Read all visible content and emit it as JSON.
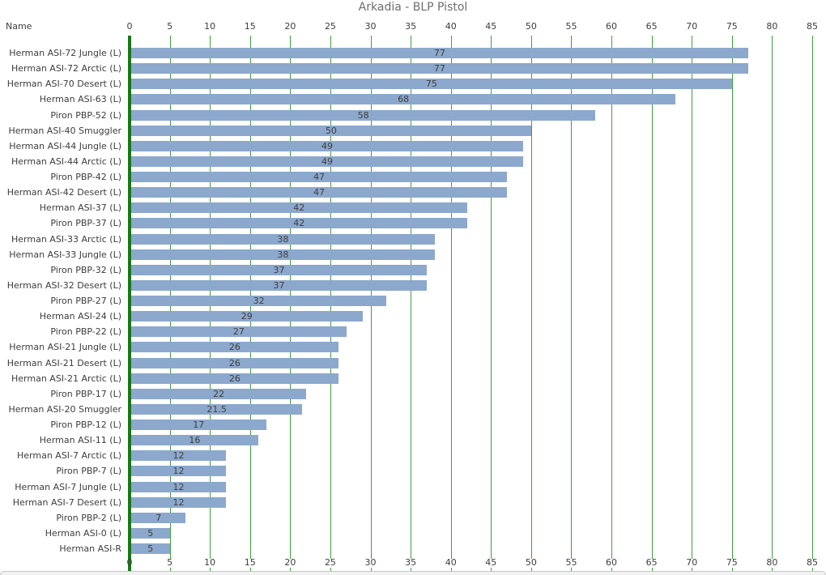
{
  "title": "Arkadia - BLP Pistol",
  "name_header": "Name",
  "chart_data": {
    "type": "bar",
    "orientation": "horizontal",
    "title": "Arkadia - BLP Pistol",
    "xlabel": "",
    "ylabel": "Name",
    "xlim": [
      0,
      85
    ],
    "ticks": [
      0,
      5,
      10,
      15,
      20,
      25,
      30,
      35,
      40,
      45,
      50,
      55,
      60,
      65,
      70,
      75,
      80,
      85
    ],
    "grid": true,
    "legend": "none",
    "axis_label_positions": [
      "top",
      "bottom"
    ],
    "categories": [
      "Herman ASI-72 Jungle (L)",
      "Herman ASI-72 Arctic (L)",
      "Herman ASI-70 Desert (L)",
      "Herman ASI-63 (L)",
      "Piron PBP-52 (L)",
      "Herman ASI-40 Smuggler",
      "Herman ASI-44 Jungle (L)",
      "Herman ASI-44 Arctic (L)",
      "Piron PBP-42 (L)",
      "Herman ASI-42 Desert (L)",
      "Herman ASI-37 (L)",
      "Piron PBP-37 (L)",
      "Herman ASI-33 Arctic (L)",
      "Herman ASI-33 Jungle (L)",
      "Piron PBP-32 (L)",
      "Herman ASI-32 Desert (L)",
      "Piron PBP-27 (L)",
      "Herman ASI-24 (L)",
      "Piron PBP-22 (L)",
      "Herman ASI-21 Jungle (L)",
      "Herman ASI-21 Desert (L)",
      "Herman ASI-21 Arctic (L)",
      "Piron PBP-17 (L)",
      "Herman ASI-20 Smuggler",
      "Piron PBP-12 (L)",
      "Herman ASI-11 (L)",
      "Herman ASI-7 Arctic (L)",
      "Piron PBP-7 (L)",
      "Herman ASI-7 Jungle (L)",
      "Herman ASI-7 Desert (L)",
      "Piron PBP-2 (L)",
      "Herman ASI-0 (L)",
      "Herman ASI-R"
    ],
    "values": [
      77,
      77,
      75,
      68,
      58,
      50,
      49,
      49,
      47,
      47,
      42,
      42,
      38,
      38,
      37,
      37,
      32,
      29,
      27,
      26,
      26,
      26,
      22,
      21.5,
      17,
      16,
      12,
      12,
      12,
      12,
      7,
      5,
      5
    ],
    "colors": {
      "bar": "#8ca8cc",
      "gridline": "#3fa03f",
      "zero_axis": "#187818",
      "text": "#3d3d3d",
      "title": "#6e6e6e",
      "background": "#ffffff"
    }
  }
}
